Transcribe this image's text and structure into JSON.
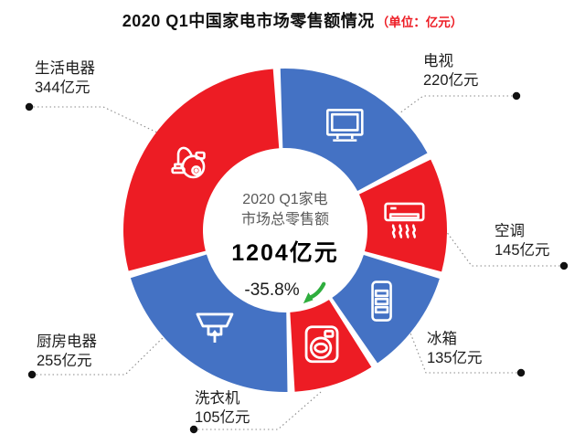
{
  "title": {
    "main": "2020 Q1中国家电市场零售额情况",
    "unit": "（单位：亿元）",
    "unit_color": "#ED1C24"
  },
  "chart_data": {
    "type": "pie",
    "subtype": "donut",
    "title": "2020 Q1中国家电市场零售额情况",
    "unit": "亿元",
    "total": 1204,
    "total_label": "1204亿元",
    "change_label": "-35.8%",
    "change_direction": "down",
    "center_caption_line1": "2020 Q1家电",
    "center_caption_line2": "市场总零售额",
    "start_angle_deg": -3,
    "legend_position": "outside-callouts",
    "colors": {
      "blue": "#4472C4",
      "red": "#ED1C24",
      "green_arrow": "#2FAE3E"
    },
    "segments": [
      {
        "label": "电视",
        "value": 220,
        "value_label": "220亿元",
        "color": "#4472C4",
        "icon": "tv-icon"
      },
      {
        "label": "空调",
        "value": 145,
        "value_label": "145亿元",
        "color": "#ED1C24",
        "icon": "air-conditioner-icon"
      },
      {
        "label": "冰箱",
        "value": 135,
        "value_label": "135亿元",
        "color": "#4472C4",
        "icon": "fridge-icon"
      },
      {
        "label": "洗衣机",
        "value": 105,
        "value_label": "105亿元",
        "color": "#ED1C24",
        "icon": "washing-machine-icon"
      },
      {
        "label": "厨房电器",
        "value": 255,
        "value_label": "255亿元",
        "color": "#4472C4",
        "icon": "range-hood-icon"
      },
      {
        "label": "生活电器",
        "value": 344,
        "value_label": "344亿元",
        "color": "#ED1C24",
        "icon": "vacuum-cleaner-icon"
      }
    ]
  }
}
